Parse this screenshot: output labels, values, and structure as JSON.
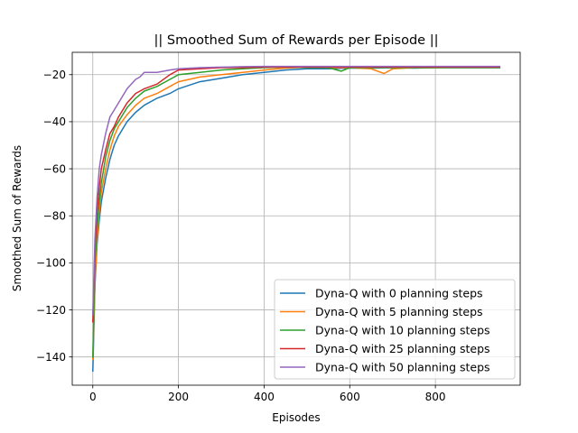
{
  "chart_data": {
    "type": "line",
    "title": "|| Smoothed Sum of Rewards per Episode ||",
    "xlabel": "Episodes",
    "ylabel": "Smoothed Sum of Rewards",
    "xlim": [
      -48,
      998
    ],
    "ylim": [
      -152,
      -10.5
    ],
    "xticks": [
      0,
      200,
      400,
      600,
      800
    ],
    "yticks": [
      -140,
      -120,
      -100,
      -80,
      -60,
      -40,
      -20
    ],
    "grid": true,
    "legend_position": "lower-right",
    "series": [
      {
        "name": "Dyna-Q with 0 planning steps",
        "color": "#1f77b4",
        "x": [
          0,
          5,
          10,
          15,
          20,
          30,
          40,
          50,
          60,
          80,
          100,
          120,
          150,
          180,
          200,
          250,
          300,
          350,
          400,
          450,
          500,
          550,
          600,
          650,
          700,
          750,
          800,
          850,
          900,
          950
        ],
        "y": [
          -146,
          -110,
          -92,
          -82,
          -74,
          -64,
          -56,
          -50,
          -46,
          -40,
          -36,
          -33,
          -30,
          -28,
          -26,
          -23,
          -21.5,
          -20,
          -19,
          -18,
          -17.5,
          -17.5,
          -17.2,
          -17.2,
          -17,
          -17.2,
          -17,
          -17,
          -17,
          -17
        ]
      },
      {
        "name": "Dyna-Q with 5 planning steps",
        "color": "#ff7f0e",
        "x": [
          0,
          5,
          10,
          15,
          20,
          30,
          40,
          50,
          60,
          80,
          100,
          120,
          150,
          180,
          200,
          250,
          300,
          350,
          400,
          450,
          500,
          550,
          600,
          650,
          680,
          700,
          750,
          800,
          850,
          900,
          950
        ],
        "y": [
          -141,
          -108,
          -90,
          -78,
          -70,
          -60,
          -52,
          -46,
          -42,
          -37,
          -33,
          -30,
          -28,
          -25,
          -23,
          -21,
          -20,
          -19,
          -18,
          -17.2,
          -16.8,
          -17,
          -17,
          -17.5,
          -19.5,
          -17.5,
          -17,
          -17,
          -16.8,
          -16.8,
          -16.8
        ]
      },
      {
        "name": "Dyna-Q with 10 planning steps",
        "color": "#2ca02c",
        "x": [
          0,
          5,
          10,
          15,
          20,
          30,
          40,
          50,
          60,
          80,
          100,
          120,
          150,
          180,
          200,
          250,
          300,
          350,
          400,
          450,
          500,
          550,
          580,
          600,
          650,
          700,
          750,
          800,
          850,
          900,
          950
        ],
        "y": [
          -140,
          -100,
          -85,
          -74,
          -66,
          -55,
          -48,
          -43,
          -40,
          -34,
          -30,
          -27,
          -25,
          -22,
          -20,
          -19,
          -18,
          -17.5,
          -17,
          -16.8,
          -17,
          -17,
          -18.5,
          -17,
          -17,
          -17,
          -17,
          -17,
          -17,
          -17,
          -17
        ]
      },
      {
        "name": "Dyna-Q with 25 planning steps",
        "color": "#d62728",
        "x": [
          0,
          5,
          10,
          15,
          20,
          30,
          40,
          50,
          60,
          80,
          100,
          120,
          150,
          180,
          200,
          250,
          300,
          350,
          400,
          450,
          500,
          550,
          600,
          650,
          700,
          750,
          800,
          850,
          900,
          950
        ],
        "y": [
          -125,
          -95,
          -78,
          -68,
          -60,
          -52,
          -45,
          -42,
          -38,
          -32,
          -28,
          -26,
          -24,
          -20,
          -18,
          -17.5,
          -17,
          -17,
          -16.8,
          -16.8,
          -16.8,
          -16.8,
          -16.8,
          -16.8,
          -16.8,
          -16.8,
          -16.8,
          -16.8,
          -16.8,
          -16.8
        ]
      },
      {
        "name": "Dyna-Q with 50 planning steps",
        "color": "#9467bd",
        "x": [
          0,
          5,
          10,
          15,
          20,
          30,
          40,
          50,
          60,
          80,
          100,
          110,
          120,
          150,
          180,
          200,
          250,
          300,
          350,
          400,
          450,
          500,
          550,
          600,
          650,
          700,
          750,
          800,
          850,
          900,
          950
        ],
        "y": [
          -122,
          -90,
          -72,
          -60,
          -54,
          -45,
          -38,
          -35,
          -32,
          -26,
          -22,
          -21,
          -19,
          -19,
          -18,
          -17.5,
          -17,
          -16.8,
          -16.6,
          -16.5,
          -16.5,
          -16.5,
          -16.5,
          -16.5,
          -16.5,
          -16.5,
          -16.5,
          -16.5,
          -16.5,
          -16.5,
          -16.5
        ]
      }
    ]
  }
}
